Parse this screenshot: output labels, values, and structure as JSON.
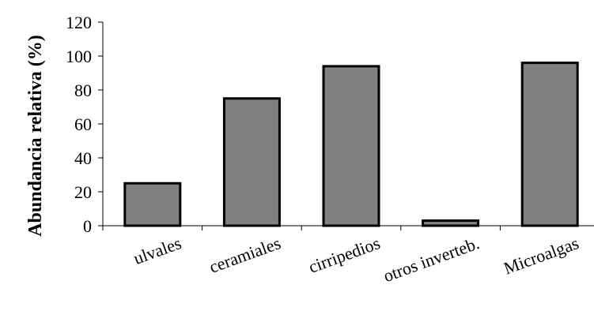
{
  "chart_data": {
    "type": "bar",
    "title": "",
    "xlabel": "",
    "ylabel": "Abundancia relativa (%)",
    "categories": [
      "ulvales",
      "ceramiales",
      "cirripedios",
      "otros inverteb.",
      "Microalgas"
    ],
    "values": [
      25,
      75,
      94,
      3,
      96
    ],
    "ylim": [
      0,
      120
    ],
    "yticks": [
      0,
      20,
      40,
      60,
      80,
      100,
      120
    ],
    "grid": false,
    "legend": "none",
    "bar_color": "#808080",
    "bar_edge_color": "#000000"
  }
}
